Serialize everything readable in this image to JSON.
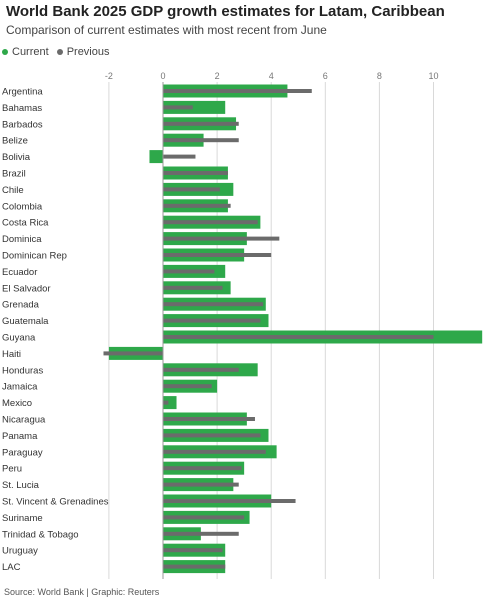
{
  "title": "World Bank 2025 GDP growth estimates for Latam, Caribbean",
  "subtitle": "Comparison of current estimates with most recent from June",
  "legend": {
    "current": "Current",
    "previous": "Previous"
  },
  "source": "Source: World Bank | Graphic: Reuters",
  "colors": {
    "current": "#2ea84a",
    "previous": "#6b6b6b",
    "grid": "#d9d9d9",
    "axis": "#cccccc"
  },
  "chart_data": {
    "type": "bar",
    "orientation": "horizontal",
    "title": "World Bank 2025 GDP growth estimates for Latam, Caribbean",
    "subtitle": "Comparison of current estimates with most recent from June",
    "categories": [
      "Argentina",
      "Bahamas",
      "Barbados",
      "Belize",
      "Bolivia",
      "Brazil",
      "Chile",
      "Colombia",
      "Costa Rica",
      "Dominica",
      "Dominican Rep",
      "Ecuador",
      "El Salvador",
      "Grenada",
      "Guatemala",
      "Guyana",
      "Haiti",
      "Honduras",
      "Jamaica",
      "Mexico",
      "Nicaragua",
      "Panama",
      "Paraguay",
      "Peru",
      "St. Lucia",
      "St. Vincent & Grenadines",
      "Suriname",
      "Trinidad & Tobago",
      "Uruguay",
      "LAC"
    ],
    "series": [
      {
        "name": "Current",
        "values": [
          4.6,
          2.3,
          2.7,
          1.5,
          -0.5,
          2.4,
          2.6,
          2.4,
          3.6,
          3.1,
          3.0,
          2.3,
          2.5,
          3.8,
          3.9,
          11.8,
          -2.0,
          3.5,
          2.0,
          0.5,
          3.1,
          3.9,
          4.2,
          3.0,
          2.6,
          4.0,
          3.2,
          1.4,
          2.3,
          2.3
        ]
      },
      {
        "name": "Previous",
        "values": [
          5.5,
          1.1,
          2.8,
          2.8,
          1.2,
          2.4,
          2.1,
          2.5,
          3.5,
          4.3,
          4.0,
          1.9,
          2.2,
          3.7,
          3.6,
          10.0,
          -2.2,
          2.8,
          1.8,
          0.2,
          3.4,
          3.6,
          3.8,
          2.9,
          2.8,
          4.9,
          3.0,
          2.8,
          2.2,
          2.3
        ]
      }
    ],
    "x_ticks": [
      -2,
      0,
      2,
      4,
      6,
      8,
      10
    ],
    "xlim": [
      -2,
      11.8
    ],
    "grid": true,
    "legend_position": "top-left"
  }
}
